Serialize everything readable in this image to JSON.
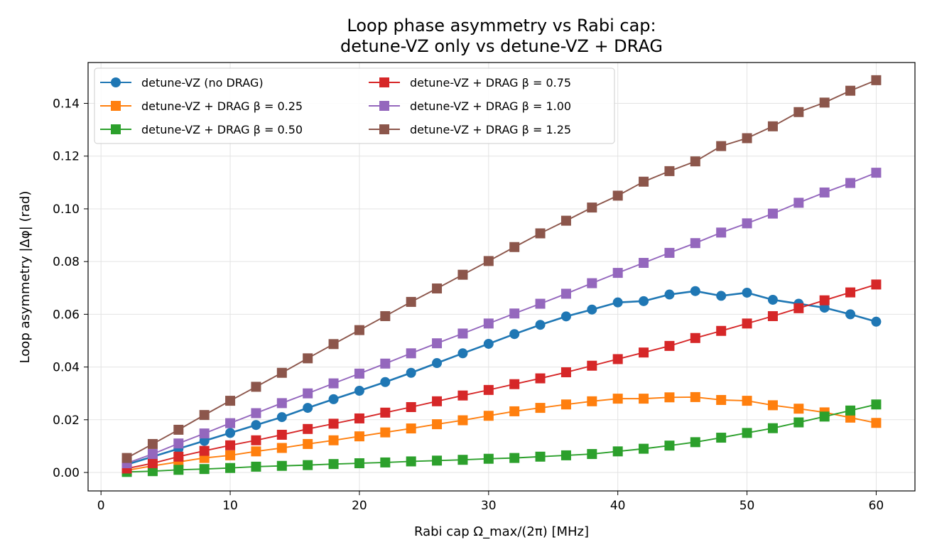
{
  "chart_data": {
    "type": "line",
    "title_line1": "Loop phase asymmetry vs Rabi cap:",
    "title_line2": "detune-VZ only vs detune-VZ + DRAG",
    "xlabel": "Rabi cap Ω_max/(2π) [MHz]",
    "ylabel": "Loop asymmetry |Δφ| (rad)",
    "xlim": [
      -1,
      63
    ],
    "ylim": [
      -0.007,
      0.1555
    ],
    "xticks": [
      0,
      10,
      20,
      30,
      40,
      50,
      60
    ],
    "xtick_labels": [
      "0",
      "10",
      "20",
      "30",
      "40",
      "50",
      "60"
    ],
    "yticks": [
      0.0,
      0.02,
      0.04,
      0.06,
      0.08,
      0.1,
      0.12,
      0.14
    ],
    "ytick_labels": [
      "0.00",
      "0.02",
      "0.04",
      "0.06",
      "0.08",
      "0.10",
      "0.12",
      "0.14"
    ],
    "grid": true,
    "legend_position": "top-left",
    "legend_columns": 2,
    "x": [
      2,
      4,
      6,
      8,
      10,
      12,
      14,
      16,
      18,
      20,
      22,
      24,
      26,
      28,
      30,
      32,
      34,
      36,
      38,
      40,
      42,
      44,
      46,
      48,
      50,
      52,
      54,
      56,
      58,
      60
    ],
    "series": [
      {
        "name": "detune-VZ (no DRAG)",
        "color": "#1f77b4",
        "marker": "circle",
        "values": [
          0.003,
          0.006,
          0.009,
          0.012,
          0.015,
          0.018,
          0.021,
          0.0245,
          0.0278,
          0.031,
          0.0343,
          0.0378,
          0.0415,
          0.0452,
          0.0488,
          0.0525,
          0.056,
          0.0592,
          0.0618,
          0.0645,
          0.065,
          0.0675,
          0.0688,
          0.067,
          0.0682,
          0.0655,
          0.064,
          0.0625,
          0.06,
          0.0572
        ]
      },
      {
        "name": "detune-VZ + DRAG β = 0.25",
        "color": "#ff7f0e",
        "marker": "square",
        "values": [
          0.0008,
          0.0025,
          0.004,
          0.0055,
          0.0065,
          0.008,
          0.0093,
          0.0108,
          0.0122,
          0.0137,
          0.0152,
          0.0167,
          0.0183,
          0.0198,
          0.0215,
          0.0232,
          0.0245,
          0.0258,
          0.027,
          0.028,
          0.028,
          0.0285,
          0.0286,
          0.0275,
          0.0272,
          0.0255,
          0.0242,
          0.0228,
          0.0208,
          0.0188
        ]
      },
      {
        "name": "detune-VZ + DRAG β = 0.50",
        "color": "#2ca02c",
        "marker": "square",
        "values": [
          0.0002,
          0.0005,
          0.001,
          0.0013,
          0.0017,
          0.0022,
          0.0025,
          0.0028,
          0.0032,
          0.0035,
          0.0038,
          0.0042,
          0.0045,
          0.0048,
          0.0052,
          0.0055,
          0.006,
          0.0065,
          0.007,
          0.008,
          0.009,
          0.0102,
          0.0115,
          0.0132,
          0.015,
          0.0168,
          0.019,
          0.0212,
          0.0235,
          0.0258
        ]
      },
      {
        "name": "detune-VZ + DRAG β = 0.75",
        "color": "#d62728",
        "marker": "square",
        "values": [
          0.0015,
          0.0035,
          0.006,
          0.0082,
          0.0103,
          0.0122,
          0.0143,
          0.0165,
          0.0185,
          0.0205,
          0.0227,
          0.0248,
          0.027,
          0.0292,
          0.0313,
          0.0335,
          0.0357,
          0.038,
          0.0405,
          0.043,
          0.0455,
          0.048,
          0.051,
          0.0537,
          0.0565,
          0.0593,
          0.0623,
          0.0653,
          0.0683,
          0.0713
        ]
      },
      {
        "name": "detune-VZ + DRAG β = 1.00",
        "color": "#9467bd",
        "marker": "square",
        "values": [
          0.0035,
          0.007,
          0.011,
          0.0148,
          0.0187,
          0.0225,
          0.0263,
          0.03,
          0.0338,
          0.0375,
          0.0413,
          0.0452,
          0.049,
          0.0527,
          0.0565,
          0.0603,
          0.064,
          0.0678,
          0.0718,
          0.0757,
          0.0795,
          0.0833,
          0.087,
          0.091,
          0.0945,
          0.0982,
          0.1023,
          0.1062,
          0.1098,
          0.1137
        ]
      },
      {
        "name": "detune-VZ + DRAG β = 1.25",
        "color": "#8c564b",
        "marker": "square",
        "values": [
          0.0055,
          0.0108,
          0.0162,
          0.0218,
          0.0272,
          0.0325,
          0.0378,
          0.0433,
          0.0487,
          0.054,
          0.0593,
          0.0647,
          0.0698,
          0.075,
          0.0802,
          0.0855,
          0.0907,
          0.0955,
          0.1005,
          0.105,
          0.1103,
          0.1143,
          0.118,
          0.1238,
          0.1268,
          0.1313,
          0.1367,
          0.1403,
          0.1448,
          0.1488
        ]
      }
    ]
  }
}
